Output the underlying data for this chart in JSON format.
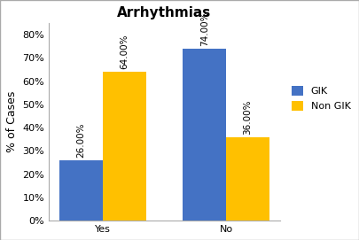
{
  "title": "Arrhythmias",
  "categories": [
    "Yes",
    "No"
  ],
  "gik_values": [
    26.0,
    74.0
  ],
  "non_gik_values": [
    64.0,
    36.0
  ],
  "gik_color": "#4472C4",
  "non_gik_color": "#FFC000",
  "ylabel": "% of Cases",
  "ylim": [
    0,
    85
  ],
  "yticks": [
    0,
    10,
    20,
    30,
    40,
    50,
    60,
    70,
    80
  ],
  "ytick_labels": [
    "0%",
    "10%",
    "20%",
    "30%",
    "40%",
    "50%",
    "60%",
    "70%",
    "80%"
  ],
  "bar_labels_gik": [
    "26.00%",
    "74.00%"
  ],
  "bar_labels_non_gik": [
    "64.00%",
    "36.00%"
  ],
  "legend_labels": [
    "GIK",
    "Non GIK"
  ],
  "bar_width": 0.35,
  "title_fontsize": 11,
  "axis_fontsize": 9,
  "tick_fontsize": 8,
  "label_fontsize": 7.5,
  "background_color": "#ffffff",
  "border_color": "#c0c0c0"
}
